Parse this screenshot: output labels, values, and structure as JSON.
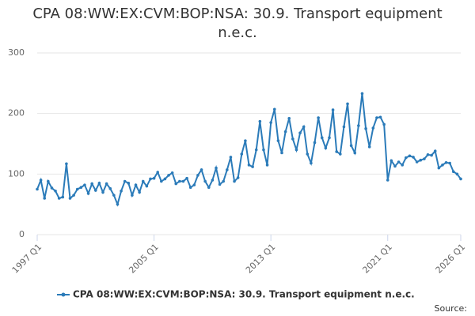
{
  "chart_data": {
    "type": "line",
    "title": "CPA 08:WW:EX:CVM:BOP:NSA: 30.9. Transport equipment n.e.c.",
    "source_label": "Source:",
    "categories": [
      "1997 Q1",
      null,
      null,
      null,
      null,
      null,
      null,
      null,
      null,
      null,
      null,
      null,
      null,
      null,
      null,
      null,
      null,
      null,
      null,
      null,
      null,
      null,
      null,
      null,
      null,
      null,
      null,
      null,
      null,
      null,
      null,
      null,
      "2005 Q1",
      null,
      null,
      null,
      null,
      null,
      null,
      null,
      null,
      null,
      null,
      null,
      null,
      null,
      null,
      null,
      null,
      null,
      null,
      null,
      null,
      null,
      null,
      null,
      null,
      null,
      null,
      null,
      null,
      null,
      null,
      null,
      "2013 Q1",
      null,
      null,
      null,
      null,
      null,
      null,
      null,
      null,
      null,
      null,
      null,
      null,
      null,
      null,
      null,
      null,
      null,
      null,
      null,
      null,
      null,
      null,
      null,
      null,
      null,
      null,
      null,
      null,
      null,
      null,
      null,
      "2021 Q1",
      null,
      null,
      null,
      null,
      null,
      null,
      null,
      null,
      null,
      null,
      null,
      null,
      null,
      null,
      null,
      null,
      null,
      null,
      null,
      "2026 Q1"
    ],
    "series": [
      {
        "name": "CPA 08:WW:EX:CVM:BOP:NSA: 30.9. Transport equipment n.e.c.",
        "color": "#2b7bb9",
        "values": [
          75,
          90,
          60,
          88,
          77,
          72,
          60,
          62,
          117,
          60,
          65,
          75,
          78,
          82,
          68,
          84,
          73,
          85,
          70,
          84,
          76,
          65,
          50,
          72,
          88,
          85,
          65,
          82,
          70,
          88,
          80,
          92,
          93,
          103,
          88,
          92,
          98,
          102,
          84,
          88,
          88,
          93,
          78,
          82,
          98,
          107,
          88,
          78,
          90,
          110,
          83,
          88,
          107,
          128,
          88,
          94,
          133,
          155,
          115,
          112,
          140,
          187,
          140,
          115,
          185,
          207,
          155,
          135,
          170,
          192,
          158,
          140,
          168,
          178,
          133,
          118,
          152,
          193,
          160,
          143,
          160,
          206,
          137,
          133,
          178,
          216,
          147,
          135,
          180,
          233,
          175,
          145,
          176,
          193,
          194,
          182,
          90,
          122,
          113,
          120,
          115,
          127,
          130,
          128,
          120,
          123,
          125,
          132,
          131,
          138,
          110,
          115,
          119,
          118,
          104,
          100,
          92
        ]
      }
    ],
    "ylim": [
      0,
      300
    ],
    "yticks": [
      0,
      100,
      200,
      300
    ],
    "grid": true
  }
}
